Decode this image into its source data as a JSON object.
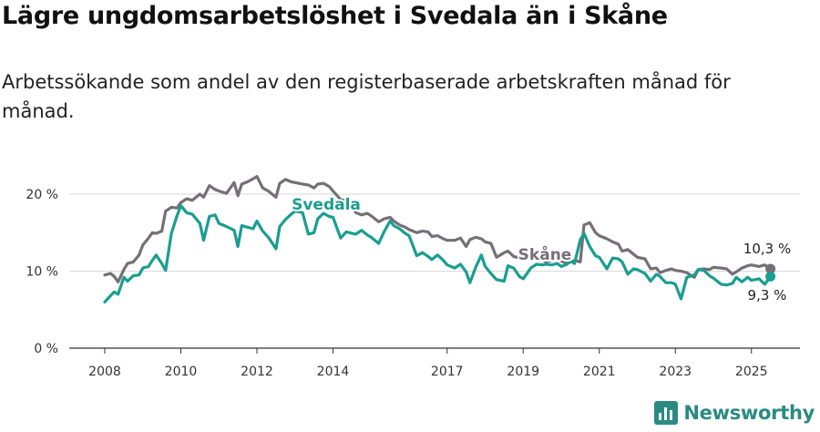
{
  "title": "Lägre ungdomsarbetslöshet i Svedala än i Skåne",
  "subtitle": "Arbetssökande som andel av den registerbaserade arbetskraften månad för månad.",
  "brand": "Newsworthy",
  "colors": {
    "svedala": "#1a9e8f",
    "skane": "#757075",
    "grid": "#d9d9d9",
    "axis": "#333333",
    "brand": "#2b8a82"
  },
  "chart_data": {
    "type": "line",
    "y_ticks": [
      "0 %",
      "10 %",
      "20 %"
    ],
    "y_tick_values": [
      0,
      10,
      20
    ],
    "x_ticks": [
      "2008",
      "2010",
      "2012",
      "2014",
      "2017",
      "2019",
      "2021",
      "2023",
      "2025"
    ],
    "x_tick_values": [
      2008,
      2010,
      2012,
      2014,
      2017,
      2019,
      2021,
      2023,
      2025
    ],
    "xlim": [
      2007.1,
      2026.5
    ],
    "ylim": [
      0,
      20
    ],
    "grid": true,
    "end_labels": {
      "skane": "10,3 %",
      "svedala": "9,3 %"
    },
    "series": [
      {
        "key": "skane",
        "name": "Skåne",
        "x": [
          2008.0,
          2008.15,
          2008.25,
          2008.35,
          2008.5,
          2008.6,
          2008.75,
          2008.9,
          2009.0,
          2009.15,
          2009.25,
          2009.35,
          2009.5,
          2009.6,
          2009.75,
          2009.9,
          2010.0,
          2010.15,
          2010.3,
          2010.5,
          2010.6,
          2010.75,
          2010.9,
          2011.0,
          2011.2,
          2011.4,
          2011.5,
          2011.6,
          2011.75,
          2011.9,
          2012.0,
          2012.15,
          2012.3,
          2012.5,
          2012.6,
          2012.75,
          2012.9,
          2013.0,
          2013.2,
          2013.35,
          2013.5,
          2013.6,
          2013.75,
          2013.9,
          2014.0,
          2014.2,
          2014.35,
          2014.5,
          2014.6,
          2014.75,
          2014.9,
          2015.0,
          2015.2,
          2015.35,
          2015.5,
          2015.6,
          2015.75,
          2015.9,
          2016.0,
          2016.2,
          2016.35,
          2016.5,
          2016.6,
          2016.75,
          2016.9,
          2017.0,
          2017.2,
          2017.35,
          2017.5,
          2017.6,
          2017.75,
          2017.9,
          2018.0,
          2018.15,
          2018.3,
          2018.5,
          2018.6,
          2018.75,
          2018.9,
          2019.0,
          2019.2,
          2019.35,
          2019.5,
          2019.6,
          2019.75,
          2019.9,
          2020.0,
          2020.15,
          2020.25,
          2020.35,
          2020.5,
          2020.6,
          2020.75,
          2020.9,
          2021.0,
          2021.2,
          2021.35,
          2021.5,
          2021.6,
          2021.75,
          2021.9,
          2022.0,
          2022.2,
          2022.35,
          2022.5,
          2022.6,
          2022.75,
          2022.9,
          2023.0,
          2023.15,
          2023.3,
          2023.5,
          2023.6,
          2023.75,
          2023.9,
          2024.0,
          2024.2,
          2024.35,
          2024.5,
          2024.6,
          2024.75,
          2024.9,
          2025.0,
          2025.2,
          2025.35,
          2025.5
        ],
        "values": [
          9.5,
          9.7,
          9.3,
          8.6,
          10.2,
          11.0,
          11.2,
          12.1,
          13.4,
          14.3,
          15.0,
          14.9,
          15.2,
          17.8,
          18.3,
          18.2,
          18.9,
          19.4,
          19.2,
          20.0,
          19.6,
          21.1,
          20.6,
          20.4,
          20.1,
          21.5,
          19.8,
          21.3,
          21.6,
          22.0,
          22.3,
          20.8,
          20.4,
          19.6,
          21.4,
          21.9,
          21.6,
          21.5,
          21.3,
          21.2,
          20.8,
          21.3,
          21.4,
          21.0,
          20.4,
          19.3,
          19.1,
          18.7,
          17.6,
          17.3,
          17.5,
          17.2,
          16.4,
          16.8,
          17.0,
          16.5,
          16.0,
          15.7,
          15.4,
          15.0,
          15.2,
          15.1,
          14.5,
          14.6,
          14.2,
          14.0,
          14.0,
          14.3,
          13.2,
          14.1,
          14.4,
          14.2,
          13.8,
          13.6,
          11.8,
          12.4,
          12.6,
          11.9,
          11.7,
          12.3,
          12.1,
          11.9,
          11.5,
          11.2,
          11.4,
          11.6,
          11.3,
          11.0,
          11.2,
          11.4,
          11.2,
          16.0,
          16.3,
          15.0,
          14.6,
          14.2,
          13.8,
          13.5,
          12.6,
          12.8,
          12.2,
          11.8,
          11.6,
          10.3,
          10.4,
          9.8,
          10.1,
          10.3,
          10.1,
          10.0,
          9.8,
          9.2,
          10.2,
          10.3,
          10.2,
          10.5,
          10.4,
          10.3,
          9.6,
          9.9,
          10.4,
          10.7,
          10.8,
          10.6,
          10.8,
          10.3
        ]
      },
      {
        "key": "svedala",
        "name": "Svedala",
        "x": [
          2008.0,
          2008.15,
          2008.25,
          2008.35,
          2008.5,
          2008.6,
          2008.75,
          2008.9,
          2009.0,
          2009.15,
          2009.25,
          2009.35,
          2009.5,
          2009.6,
          2009.75,
          2009.9,
          2010.0,
          2010.15,
          2010.3,
          2010.5,
          2010.6,
          2010.75,
          2010.9,
          2011.0,
          2011.2,
          2011.4,
          2011.5,
          2011.6,
          2011.75,
          2011.9,
          2012.0,
          2012.15,
          2012.3,
          2012.5,
          2012.6,
          2012.75,
          2012.9,
          2013.0,
          2013.2,
          2013.35,
          2013.5,
          2013.6,
          2013.75,
          2013.9,
          2014.0,
          2014.2,
          2014.35,
          2014.5,
          2014.6,
          2014.75,
          2014.9,
          2015.0,
          2015.2,
          2015.35,
          2015.5,
          2015.6,
          2015.75,
          2015.9,
          2016.0,
          2016.2,
          2016.35,
          2016.5,
          2016.6,
          2016.75,
          2016.9,
          2017.0,
          2017.2,
          2017.35,
          2017.5,
          2017.6,
          2017.75,
          2017.9,
          2018.0,
          2018.15,
          2018.3,
          2018.5,
          2018.6,
          2018.75,
          2018.9,
          2019.0,
          2019.2,
          2019.35,
          2019.5,
          2019.6,
          2019.75,
          2019.9,
          2020.0,
          2020.15,
          2020.25,
          2020.35,
          2020.5,
          2020.6,
          2020.75,
          2020.9,
          2021.0,
          2021.2,
          2021.35,
          2021.5,
          2021.6,
          2021.75,
          2021.9,
          2022.0,
          2022.2,
          2022.35,
          2022.5,
          2022.6,
          2022.75,
          2022.9,
          2023.0,
          2023.15,
          2023.3,
          2023.5,
          2023.6,
          2023.75,
          2023.9,
          2024.0,
          2024.2,
          2024.35,
          2024.5,
          2024.6,
          2024.75,
          2024.9,
          2025.0,
          2025.2,
          2025.35,
          2025.5
        ],
        "values": [
          6.0,
          6.8,
          7.3,
          7.0,
          9.2,
          8.7,
          9.4,
          9.5,
          10.4,
          10.6,
          11.4,
          12.1,
          11.0,
          10.1,
          14.9,
          17.2,
          18.5,
          17.6,
          17.4,
          16.2,
          14.0,
          17.1,
          17.3,
          16.2,
          15.8,
          15.3,
          13.2,
          15.9,
          15.7,
          15.5,
          16.5,
          15.2,
          14.4,
          12.9,
          15.8,
          16.7,
          17.4,
          17.8,
          17.6,
          14.8,
          15.0,
          16.8,
          17.5,
          17.1,
          17.0,
          14.3,
          15.1,
          14.9,
          14.8,
          15.3,
          14.7,
          14.4,
          13.6,
          15.2,
          16.5,
          15.9,
          15.5,
          14.9,
          14.6,
          12.0,
          12.4,
          11.9,
          11.5,
          12.1,
          11.4,
          10.8,
          10.4,
          10.9,
          9.9,
          8.5,
          10.5,
          12.1,
          10.6,
          9.7,
          8.9,
          8.7,
          10.7,
          10.4,
          9.3,
          9.0,
          10.4,
          10.9,
          10.8,
          10.9,
          10.8,
          11.0,
          10.6,
          10.9,
          11.3,
          11.0,
          14.1,
          14.9,
          13.2,
          12.0,
          11.8,
          10.3,
          11.7,
          11.6,
          11.2,
          9.6,
          10.3,
          10.2,
          9.7,
          8.7,
          9.6,
          9.3,
          8.5,
          8.5,
          8.3,
          6.4,
          9.2,
          9.5,
          10.2,
          10.1,
          9.4,
          9.1,
          8.3,
          8.2,
          8.4,
          9.2,
          8.6,
          9.2,
          8.8,
          9.0,
          8.3,
          9.3
        ]
      }
    ]
  }
}
